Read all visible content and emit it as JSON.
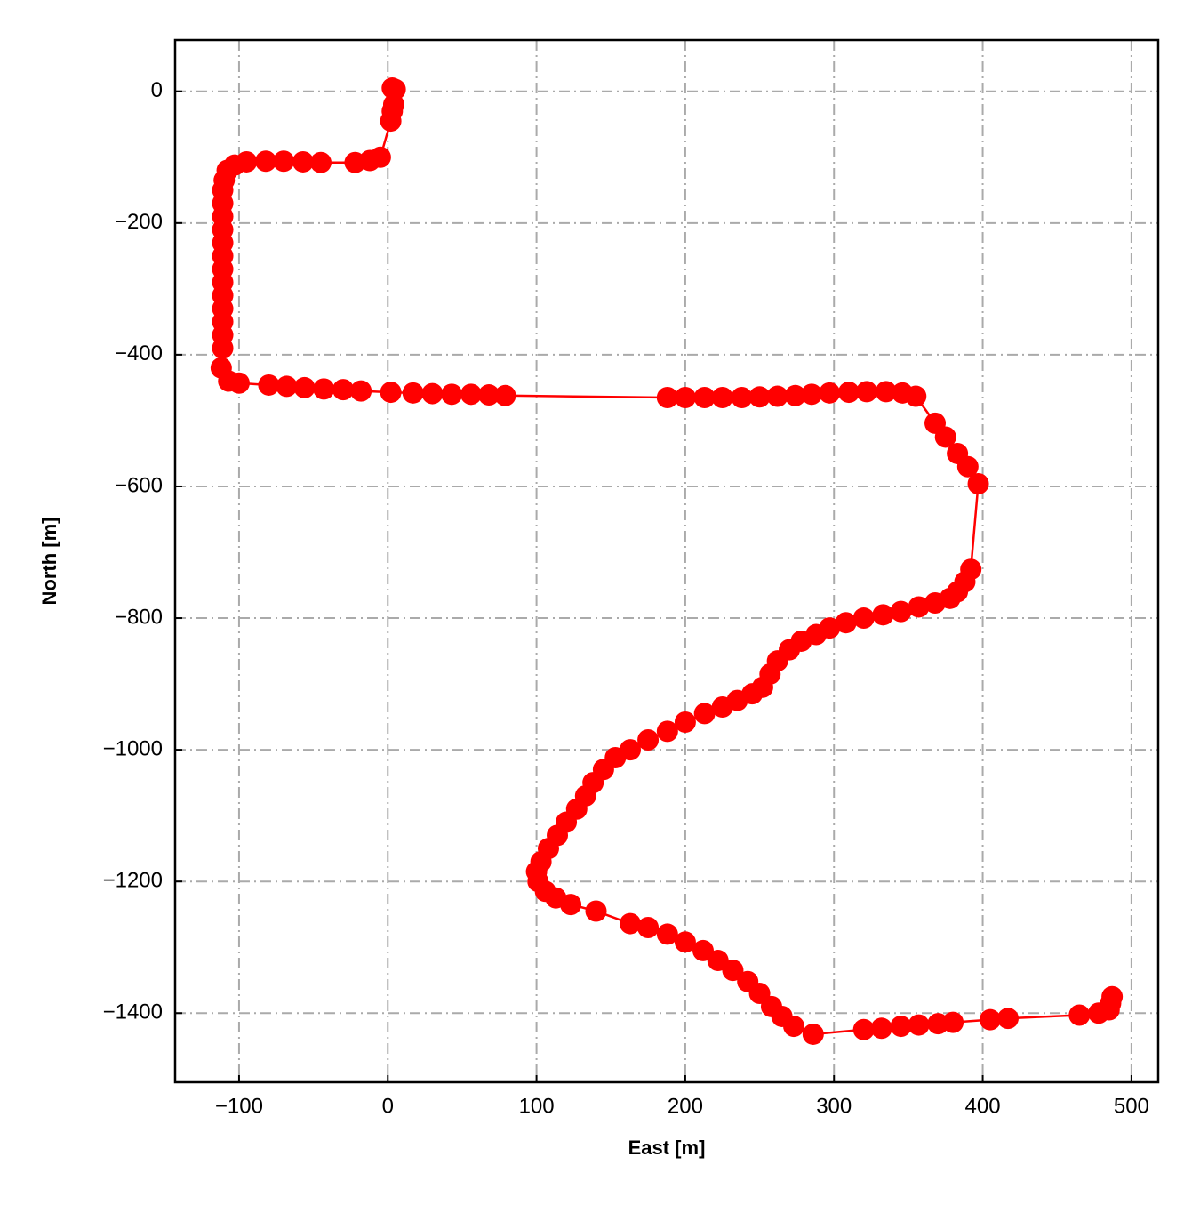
{
  "chart_data": {
    "type": "line",
    "xlabel": "East [m]",
    "ylabel": "North [m]",
    "xlim": [
      -143,
      518
    ],
    "ylim": [
      -1505,
      78
    ],
    "xticks": [
      {
        "value": -100,
        "label": "−100"
      },
      0,
      100,
      200,
      300,
      400,
      500
    ],
    "yticks": [
      0,
      {
        "value": -200,
        "label": "−200"
      },
      {
        "value": -400,
        "label": "−400"
      },
      {
        "value": -600,
        "label": "−600"
      },
      {
        "value": -800,
        "label": "−800"
      },
      {
        "value": -1000,
        "label": "−1000"
      },
      {
        "value": -1200,
        "label": "−1200"
      },
      {
        "value": -1400,
        "label": "−1400"
      }
    ],
    "grid": true,
    "x": [
      3,
      5,
      4,
      3,
      2,
      -5,
      -12,
      -22,
      -45,
      -57,
      -70,
      -82,
      -95,
      -103,
      -108,
      -110,
      -111,
      -111,
      -111,
      -111,
      -111,
      -111,
      -111,
      -111,
      -111,
      -111,
      -111,
      -111,
      -111,
      -112,
      -107,
      -100,
      -80,
      -68,
      -56,
      -43,
      -30,
      -18,
      2,
      17,
      30,
      43,
      56,
      68,
      79,
      188,
      200,
      213,
      225,
      238,
      250,
      262,
      274,
      285,
      297,
      310,
      322,
      335,
      346,
      355,
      368,
      375,
      383,
      390,
      397,
      392,
      388,
      383,
      378,
      368,
      357,
      345,
      333,
      320,
      308,
      297,
      288,
      278,
      270,
      262,
      257,
      252,
      245,
      235,
      225,
      213,
      200,
      188,
      175,
      163,
      153,
      145,
      138,
      133,
      127,
      120,
      114,
      108,
      103,
      100,
      101,
      106,
      113,
      123,
      140,
      163,
      175,
      188,
      200,
      212,
      222,
      232,
      242,
      250,
      258,
      265,
      273,
      286,
      320,
      332,
      345,
      357,
      370,
      380,
      405,
      417,
      465,
      478,
      485,
      486,
      487
    ],
    "series": [
      {
        "color": "#ff0000",
        "values": [
          5,
          3,
          -20,
          -30,
          -45,
          -100,
          -105,
          -108,
          -108,
          -107,
          -106,
          -106,
          -107,
          -112,
          -120,
          -135,
          -150,
          -170,
          -190,
          -210,
          -230,
          -250,
          -270,
          -290,
          -310,
          -330,
          -350,
          -370,
          -390,
          -420,
          -440,
          -443,
          -446,
          -448,
          -450,
          -452,
          -453,
          -455,
          -457,
          -458,
          -459,
          -460,
          -460,
          -461,
          -462,
          -465,
          -465,
          -465,
          -465,
          -465,
          -464,
          -463,
          -462,
          -460,
          -458,
          -457,
          -456,
          -456,
          -458,
          -463,
          -504,
          -525,
          -550,
          -570,
          -596,
          -726,
          -745,
          -760,
          -770,
          -777,
          -783,
          -790,
          -795,
          -800,
          -807,
          -815,
          -825,
          -835,
          -848,
          -865,
          -885,
          -905,
          -915,
          -925,
          -935,
          -945,
          -958,
          -972,
          -985,
          -1000,
          -1012,
          -1030,
          -1050,
          -1070,
          -1090,
          -1110,
          -1130,
          -1150,
          -1170,
          -1185,
          -1200,
          -1215,
          -1225,
          -1235,
          -1245,
          -1264,
          -1270,
          -1280,
          -1292,
          -1305,
          -1320,
          -1335,
          -1352,
          -1370,
          -1390,
          -1405,
          -1420,
          -1432,
          -1425,
          -1423,
          -1420,
          -1418,
          -1416,
          -1414,
          -1410,
          -1408,
          -1403,
          -1400,
          -1395,
          -1385,
          -1375
        ]
      }
    ]
  }
}
